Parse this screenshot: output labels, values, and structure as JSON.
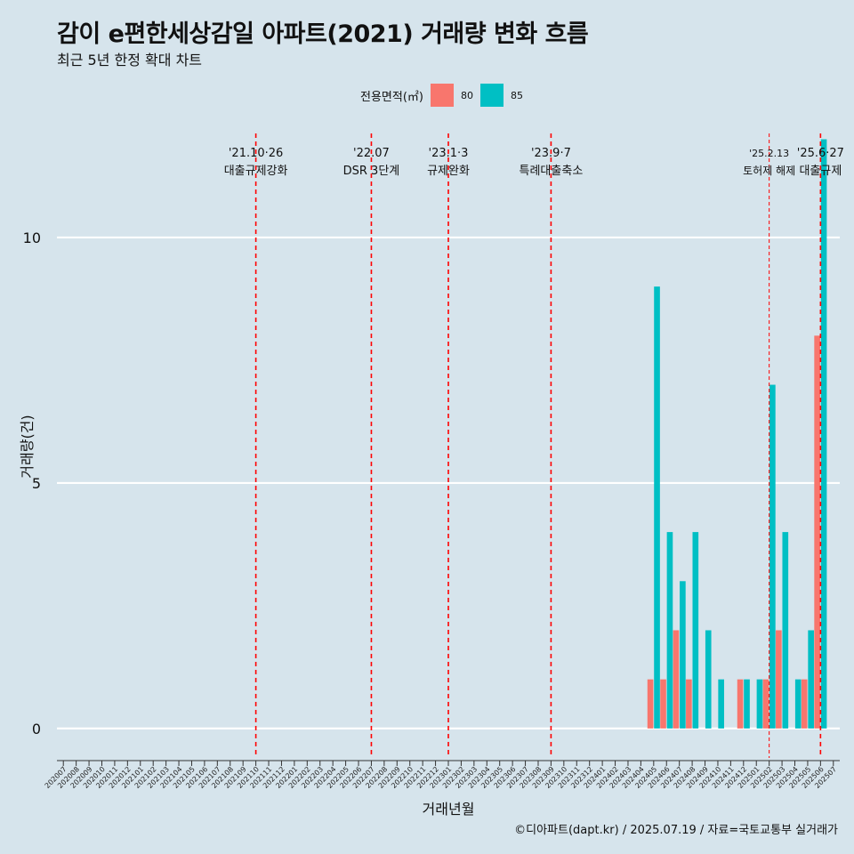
{
  "title": "감이 e편한세상감일 아파트(2021) 거래량 변화 흐름",
  "subtitle": "최근 5년 한정 확대 차트",
  "caption": "©디아파트(dapt.kr) / 2025.07.19 / 자료=국토교통부 실거래가",
  "colors": {
    "background": "#d6e4ec",
    "series80": "#f8766d",
    "series85": "#00bfc4",
    "vline": "#ff0000",
    "grid": "#ffffff"
  },
  "chart_data": {
    "type": "bar",
    "title": "감이 e편한세상감일 아파트(2021) 거래량 변화 흐름",
    "subtitle": "최근 5년 한정 확대 차트",
    "xlabel": "거래년월",
    "ylabel": "거래량(건)",
    "legend_title": "전용면적(㎡)",
    "legend_position": "top",
    "ylim": [
      -0.6,
      12.3
    ],
    "yticks": [
      0,
      5,
      10
    ],
    "grid": true,
    "categories": [
      "202007",
      "202008",
      "202009",
      "202010",
      "202011",
      "202012",
      "202101",
      "202102",
      "202103",
      "202104",
      "202105",
      "202106",
      "202107",
      "202108",
      "202109",
      "202110",
      "202111",
      "202112",
      "202201",
      "202202",
      "202203",
      "202204",
      "202205",
      "202206",
      "202207",
      "202208",
      "202209",
      "202210",
      "202211",
      "202212",
      "202301",
      "202302",
      "202303",
      "202304",
      "202305",
      "202306",
      "202307",
      "202308",
      "202309",
      "202310",
      "202311",
      "202312",
      "202401",
      "202402",
      "202403",
      "202404",
      "202405",
      "202406",
      "202407",
      "202408",
      "202409",
      "202410",
      "202411",
      "202412",
      "202501",
      "202502",
      "202503",
      "202504",
      "202505",
      "202506",
      "202507"
    ],
    "series": [
      {
        "name": "80",
        "color": "#f8766d",
        "values": [
          0,
          0,
          0,
          0,
          0,
          0,
          0,
          0,
          0,
          0,
          0,
          0,
          0,
          0,
          0,
          0,
          0,
          0,
          0,
          0,
          0,
          0,
          0,
          0,
          0,
          0,
          0,
          0,
          0,
          0,
          0,
          0,
          0,
          0,
          0,
          0,
          0,
          0,
          0,
          0,
          0,
          0,
          0,
          0,
          0,
          0,
          1,
          1,
          2,
          1,
          0,
          0,
          0,
          1,
          0,
          1,
          2,
          0,
          1,
          8,
          0
        ]
      },
      {
        "name": "85",
        "color": "#00bfc4",
        "values": [
          0,
          0,
          0,
          0,
          0,
          0,
          0,
          0,
          0,
          0,
          0,
          0,
          0,
          0,
          0,
          0,
          0,
          0,
          0,
          0,
          0,
          0,
          0,
          0,
          0,
          0,
          0,
          0,
          0,
          0,
          0,
          0,
          0,
          0,
          0,
          0,
          0,
          0,
          0,
          0,
          0,
          0,
          0,
          0,
          0,
          0,
          9,
          4,
          3,
          4,
          2,
          1,
          0,
          1,
          1,
          7,
          4,
          1,
          2,
          12,
          0
        ]
      }
    ],
    "events": [
      {
        "month": "202110",
        "date": "'21.10·26",
        "label": "대출규제강화"
      },
      {
        "month": "202207",
        "date": "'22.07",
        "label": "DSR 3단계"
      },
      {
        "month": "202301",
        "date": "'23.1·3",
        "label": "규제완화"
      },
      {
        "month": "202309",
        "date": "'23.9·7",
        "label": "특례대출축소"
      },
      {
        "month": "202502",
        "date": "'25.2.13",
        "label": "토허제 해제"
      },
      {
        "month": "202506",
        "date": "'25.6·27",
        "label": "대출규제"
      }
    ]
  }
}
